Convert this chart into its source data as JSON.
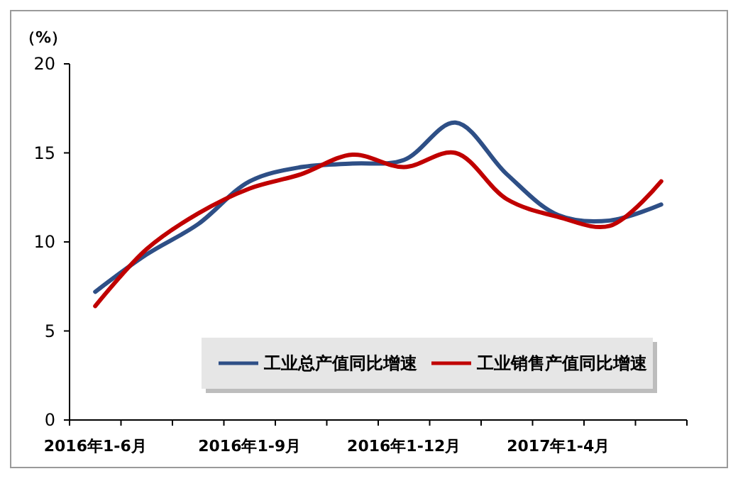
{
  "chart_data": {
    "type": "line",
    "ylabel": "（%）",
    "categories": [
      "2016年1-6月",
      null,
      null,
      "2016年1-9月",
      null,
      null,
      "2016年1-12月",
      null,
      null,
      "2017年1-4月",
      null,
      null
    ],
    "series": [
      {
        "name": "工业总产值同比增速",
        "color": "#2e4f86",
        "values": [
          7.2,
          9.3,
          11.0,
          13.4,
          14.2,
          14.4,
          14.6,
          16.7,
          13.8,
          11.5,
          11.2,
          12.1
        ]
      },
      {
        "name": "工业销售产值同比增速",
        "color": "#c00000",
        "values": [
          6.4,
          9.6,
          11.6,
          13.0,
          13.8,
          14.9,
          14.2,
          15.0,
          12.4,
          11.4,
          10.9,
          13.4
        ]
      }
    ],
    "ylim": [
      0,
      20
    ],
    "yticks": [
      0,
      5,
      10,
      15,
      20
    ],
    "grid": false,
    "legend": "bottom",
    "line_style": "solid",
    "marker": "none"
  }
}
